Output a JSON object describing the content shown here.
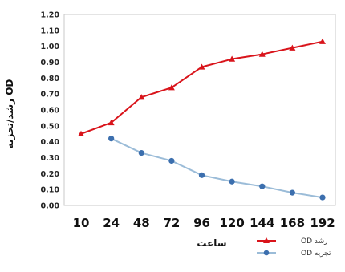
{
  "chart_data": {
    "type": "line",
    "title": "",
    "xlabel": "ساعت",
    "ylabel": "رشد/تجزیه OD",
    "ylim": [
      0,
      1.2
    ],
    "y_ticks": [
      "0.00",
      "0.10",
      "0.20",
      "0.30",
      "0.40",
      "0.50",
      "0.60",
      "0.70",
      "0.80",
      "0.90",
      "1.00",
      "1.10",
      "1.20"
    ],
    "categories": [
      "10",
      "24",
      "48",
      "72",
      "96",
      "120",
      "144",
      "168",
      "192"
    ],
    "grid": false,
    "legend_position": "bottom-right",
    "series": [
      {
        "name": "رشد OD",
        "color": "#d9141b",
        "marker": "triangle",
        "values": [
          0.45,
          0.52,
          0.68,
          0.74,
          0.87,
          0.92,
          0.95,
          0.99,
          1.03
        ]
      },
      {
        "name": "تجزیه OD",
        "color": "#9bbcd8",
        "marker_color": "#3c6fae",
        "marker": "circle",
        "values": [
          null,
          0.42,
          0.33,
          0.28,
          0.19,
          0.15,
          0.12,
          0.08,
          0.05
        ]
      }
    ]
  }
}
